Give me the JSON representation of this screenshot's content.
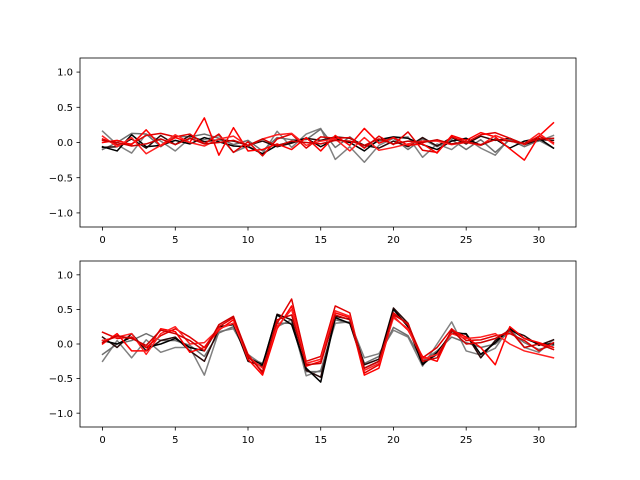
{
  "chart_data": [
    {
      "type": "line",
      "title": "",
      "xlabel": "",
      "ylabel": "",
      "xlim": [
        -1.55,
        32.55
      ],
      "ylim": [
        -1.2,
        1.2
      ],
      "xticks": [
        0,
        5,
        10,
        15,
        20,
        25,
        30
      ],
      "xtick_labels": [
        "0",
        "5",
        "10",
        "15",
        "20",
        "25",
        "30"
      ],
      "yticks": [
        -1.0,
        -0.5,
        0.0,
        0.5,
        1.0
      ],
      "ytick_labels": [
        "−1.0",
        "−0.5",
        "0.0",
        "0.5",
        "1.0"
      ],
      "grid": false,
      "x": [
        0,
        1,
        2,
        3,
        4,
        5,
        6,
        7,
        8,
        9,
        10,
        11,
        12,
        13,
        14,
        15,
        16,
        17,
        18,
        19,
        20,
        21,
        22,
        23,
        24,
        25,
        26,
        27,
        28,
        29,
        30,
        31
      ],
      "series": [
        {
          "color": "#808080",
          "values": [
            0.16,
            -0.03,
            -0.15,
            0.12,
            0.02,
            -0.12,
            0.06,
            0.04,
            0.1,
            -0.14,
            -0.05,
            -0.16,
            0.16,
            -0.07,
            0.12,
            0.2,
            -0.24,
            -0.06,
            -0.28,
            -0.04,
            0.06,
            0.08,
            -0.21,
            -0.02,
            -0.1,
            0.06,
            -0.08,
            -0.18,
            0.06,
            -0.02,
            0.02,
            0.1
          ]
        },
        {
          "color": "#6e6e6e",
          "values": [
            -0.1,
            0.0,
            0.13,
            0.12,
            -0.06,
            0.09,
            0.08,
            0.12,
            0.06,
            -0.03,
            0.03,
            -0.12,
            0.07,
            0.04,
            0.04,
            0.19,
            -0.07,
            0.08,
            -0.07,
            0.02,
            0.06,
            -0.1,
            0.05,
            -0.06,
            0.04,
            -0.1,
            0.04,
            -0.14,
            0.04,
            -0.06,
            0.03,
            -0.08
          ]
        },
        {
          "color": "#2a0a0a",
          "values": [
            -0.07,
            -0.06,
            0.05,
            -0.08,
            0.1,
            -0.03,
            0.1,
            0.01,
            0.04,
            0.02,
            -0.04,
            0.02,
            -0.06,
            -0.01,
            0.06,
            0.03,
            0.08,
            0.06,
            -0.04,
            -0.08,
            0.02,
            -0.06,
            0.07,
            -0.05,
            0.07,
            -0.02,
            0.09,
            0.03,
            0.06,
            -0.03,
            0.04,
            0.03
          ]
        },
        {
          "color": "#000000",
          "values": [
            -0.06,
            -0.12,
            0.11,
            -0.06,
            -0.04,
            0.03,
            -0.02,
            0.07,
            0.01,
            -0.05,
            -0.06,
            -0.16,
            -0.04,
            0.01,
            0.06,
            -0.06,
            0.05,
            0.0,
            -0.12,
            0.04,
            0.08,
            0.06,
            -0.03,
            -0.1,
            0.02,
            0.06,
            -0.04,
            0.05,
            -0.08,
            0.02,
            0.06,
            -0.08
          ]
        },
        {
          "color": "#e00000",
          "values": [
            0.05,
            -0.03,
            -0.02,
            0.1,
            0.13,
            0.08,
            0.12,
            -0.02,
            0.12,
            -0.14,
            0.01,
            -0.19,
            0.05,
            0.12,
            -0.08,
            0.08,
            0.06,
            0.07,
            -0.08,
            0.09,
            -0.03,
            0.15,
            -0.11,
            -0.14,
            0.08,
            0.0,
            0.11,
            0.14,
            0.06,
            -0.03,
            0.09,
            0.0
          ]
        },
        {
          "color": "#ff0000",
          "values": [
            0.0,
            0.03,
            -0.03,
            0.18,
            -0.05,
            0.07,
            0.0,
            0.35,
            -0.18,
            0.21,
            -0.12,
            -0.1,
            -0.02,
            -0.1,
            0.07,
            -0.12,
            0.1,
            -0.04,
            0.2,
            -0.01,
            0.07,
            -0.04,
            -0.02,
            -0.15,
            0.1,
            0.03,
            0.14,
            0.08,
            -0.09,
            -0.25,
            0.09,
            0.28
          ]
        },
        {
          "color": "#ff2020",
          "values": [
            0.09,
            -0.06,
            0.07,
            -0.16,
            -0.04,
            0.11,
            0.0,
            -0.05,
            0.05,
            0.09,
            -0.05,
            0.05,
            0.11,
            0.13,
            -0.04,
            0.02,
            0.05,
            -0.12,
            0.07,
            -0.11,
            -0.07,
            -0.02,
            0.02,
            0.02,
            -0.03,
            0.0,
            -0.04,
            0.1,
            0.02,
            -0.02,
            0.13,
            -0.02
          ]
        },
        {
          "color": "#cc0000",
          "values": [
            0.03,
            0.0,
            -0.05,
            -0.02,
            0.05,
            -0.03,
            0.06,
            -0.02,
            0.0,
            0.03,
            -0.04,
            0.05,
            -0.05,
            0.02,
            0.0,
            -0.02,
            0.03,
            0.02,
            -0.04,
            0.05,
            -0.02,
            0.02,
            0.0,
            0.04,
            -0.02,
            0.01,
            -0.03,
            0.04,
            0.02,
            -0.01,
            0.05,
            0.06
          ]
        }
      ]
    },
    {
      "type": "line",
      "title": "",
      "xlabel": "",
      "ylabel": "",
      "xlim": [
        -1.55,
        32.55
      ],
      "ylim": [
        -1.2,
        1.2
      ],
      "xticks": [
        0,
        5,
        10,
        15,
        20,
        25,
        30
      ],
      "xtick_labels": [
        "0",
        "5",
        "10",
        "15",
        "20",
        "25",
        "30"
      ],
      "yticks": [
        -1.0,
        -0.5,
        0.0,
        0.5,
        1.0
      ],
      "ytick_labels": [
        "−1.0",
        "−0.5",
        "0.0",
        "0.5",
        "1.0"
      ],
      "grid": false,
      "x": [
        0,
        1,
        2,
        3,
        4,
        5,
        6,
        7,
        8,
        9,
        10,
        11,
        12,
        13,
        14,
        15,
        16,
        17,
        18,
        19,
        20,
        21,
        22,
        23,
        24,
        25,
        26,
        27,
        28,
        29,
        30,
        31
      ],
      "series": [
        {
          "color": "#808080",
          "values": [
            -0.25,
            0.05,
            -0.2,
            0.06,
            -0.12,
            -0.05,
            -0.05,
            -0.45,
            0.18,
            0.22,
            -0.15,
            -0.3,
            0.25,
            0.35,
            -0.46,
            -0.38,
            0.3,
            0.32,
            -0.2,
            -0.14,
            0.2,
            0.1,
            -0.32,
            0.0,
            0.32,
            -0.1,
            -0.16,
            -0.06,
            0.24,
            -0.05,
            -0.12,
            0.06
          ]
        },
        {
          "color": "#6e6e6e",
          "values": [
            -0.15,
            0.0,
            0.05,
            0.15,
            0.05,
            0.05,
            -0.02,
            -0.18,
            0.16,
            0.25,
            -0.2,
            -0.28,
            0.3,
            0.3,
            -0.4,
            -0.4,
            0.35,
            0.3,
            -0.28,
            -0.18,
            0.24,
            0.12,
            -0.25,
            -0.1,
            0.1,
            0.02,
            -0.05,
            0.0,
            0.18,
            0.02,
            -0.08,
            -0.02
          ]
        },
        {
          "color": "#2a0a0a",
          "values": [
            0.1,
            -0.05,
            0.15,
            -0.1,
            0.05,
            0.1,
            -0.1,
            -0.25,
            0.22,
            0.3,
            -0.25,
            -0.32,
            0.43,
            0.35,
            -0.38,
            -0.48,
            0.4,
            0.36,
            -0.3,
            -0.22,
            0.52,
            0.3,
            -0.28,
            -0.15,
            0.18,
            0.14,
            -0.2,
            0.05,
            0.2,
            0.12,
            -0.02,
            0.06
          ]
        },
        {
          "color": "#000000",
          "values": [
            0.05,
            0.0,
            0.1,
            -0.05,
            0.0,
            0.08,
            -0.05,
            -0.1,
            0.25,
            0.28,
            -0.2,
            -0.3,
            0.42,
            0.28,
            -0.35,
            -0.55,
            0.38,
            0.3,
            -0.35,
            -0.25,
            0.5,
            0.25,
            -0.3,
            -0.12,
            0.15,
            0.15,
            -0.15,
            0.02,
            0.22,
            0.08,
            0.0,
            0.0
          ]
        },
        {
          "color": "#e00000",
          "values": [
            0.17,
            0.08,
            0.1,
            -0.05,
            0.12,
            0.22,
            0.1,
            -0.05,
            0.25,
            0.38,
            -0.15,
            -0.42,
            0.3,
            0.65,
            -0.25,
            -0.18,
            0.55,
            0.45,
            -0.42,
            -0.3,
            0.45,
            0.28,
            -0.2,
            -0.05,
            0.22,
            0.05,
            0.06,
            0.12,
            0.15,
            0.05,
            -0.1,
            0.02
          ]
        },
        {
          "color": "#ff0000",
          "values": [
            0.0,
            0.15,
            -0.1,
            -0.1,
            0.22,
            0.18,
            -0.12,
            -0.05,
            0.2,
            0.35,
            -0.22,
            -0.45,
            0.22,
            0.55,
            -0.32,
            -0.25,
            0.45,
            0.38,
            -0.45,
            -0.35,
            0.4,
            0.2,
            -0.18,
            -0.25,
            0.2,
            0.1,
            -0.05,
            -0.3,
            0.25,
            0.08,
            0.02,
            -0.05
          ]
        },
        {
          "color": "#ff2020",
          "values": [
            0.05,
            0.1,
            0.15,
            -0.15,
            0.15,
            0.25,
            0.0,
            0.02,
            0.22,
            0.3,
            -0.18,
            -0.35,
            0.25,
            0.5,
            -0.28,
            -0.22,
            0.48,
            0.4,
            -0.38,
            -0.28,
            0.38,
            0.22,
            -0.22,
            -0.15,
            0.15,
            0.08,
            0.1,
            0.15,
            0.0,
            -0.1,
            -0.15,
            -0.2
          ]
        },
        {
          "color": "#cc0000",
          "values": [
            0.02,
            0.12,
            0.08,
            -0.02,
            0.2,
            0.15,
            0.05,
            -0.1,
            0.28,
            0.4,
            -0.18,
            -0.4,
            0.35,
            0.42,
            -0.3,
            -0.28,
            0.42,
            0.35,
            -0.35,
            -0.25,
            0.42,
            0.3,
            -0.25,
            -0.2,
            0.2,
            0.0,
            0.02,
            0.08,
            0.2,
            -0.05,
            0.0,
            -0.08
          ]
        }
      ]
    }
  ]
}
